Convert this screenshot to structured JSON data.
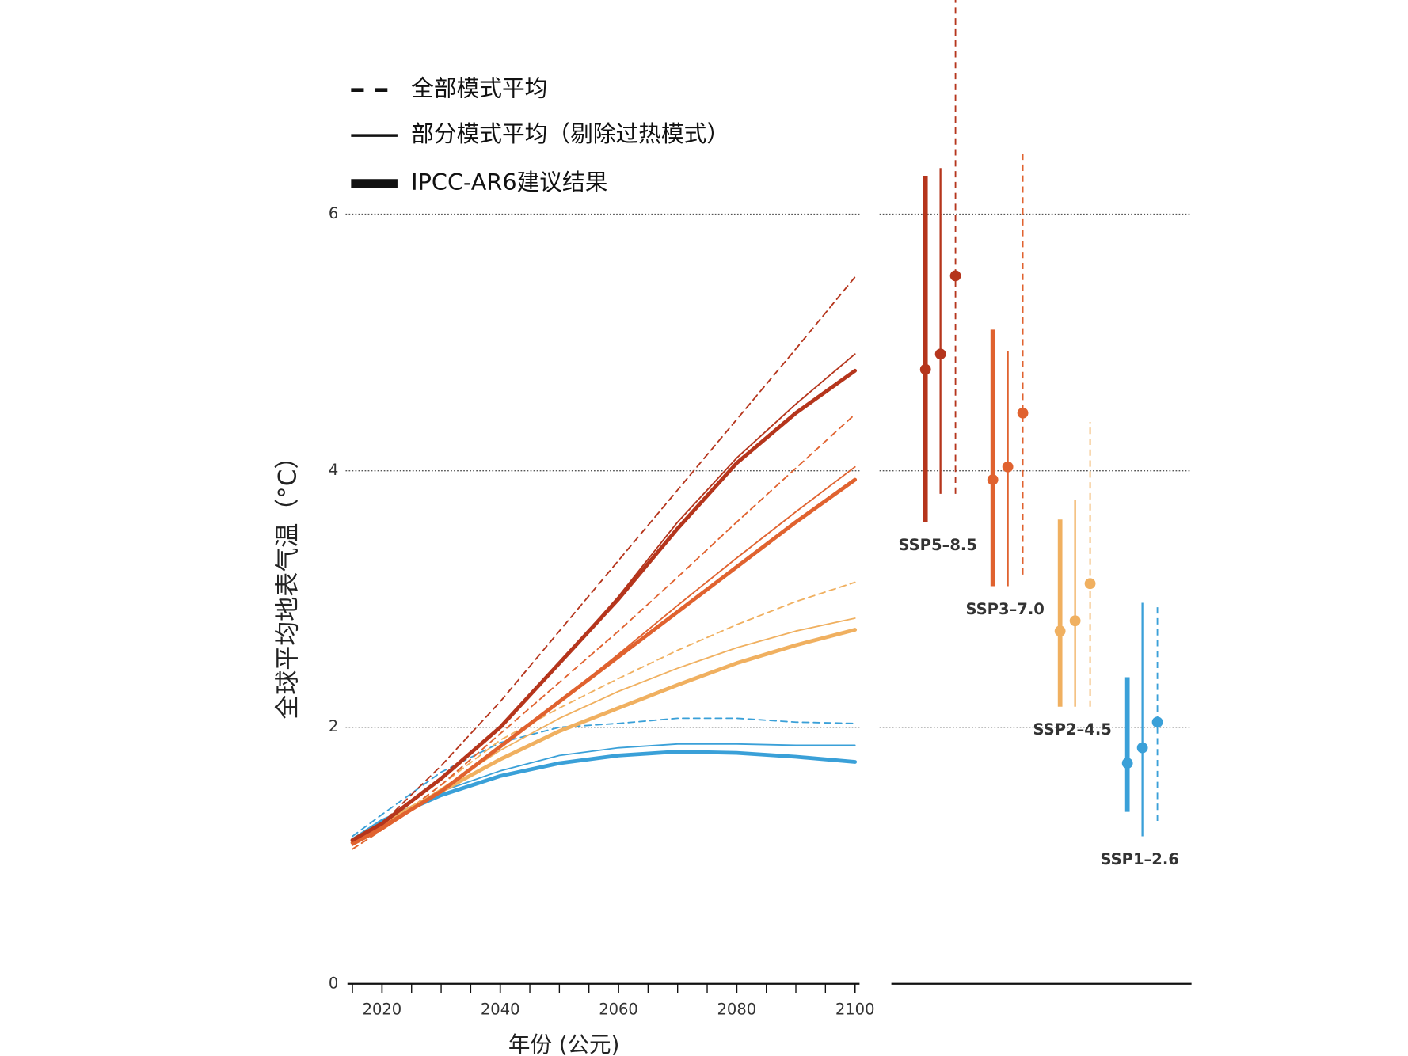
{
  "chart_data": [
    {
      "type": "line",
      "ylabel": "全球平均地表气温（°C）",
      "xlabel": "年份 (公元)",
      "xlim": [
        2014.5,
        2101
      ],
      "ylim": [
        0,
        7.67
      ],
      "xticks": [
        2020,
        2040,
        2060,
        2080,
        2100
      ],
      "xticks_minor": [
        2015,
        2025,
        2030,
        2035,
        2045,
        2050,
        2055,
        2065,
        2070,
        2075,
        2085,
        2090,
        2095
      ],
      "yticks": [
        0,
        2,
        4,
        6
      ],
      "grid": true,
      "legend": [
        {
          "label": "全部模式平均",
          "style": "dashed"
        },
        {
          "label": "部分模式平均（剔除过热模式）",
          "style": "thin"
        },
        {
          "label": "IPCC-AR6建议结果",
          "style": "thick"
        }
      ],
      "x": [
        2015,
        2020,
        2030,
        2040,
        2050,
        2060,
        2070,
        2080,
        2090,
        2100
      ],
      "series": [
        {
          "style": "dashed",
          "color": "#3aa0d8",
          "values": [
            1.15,
            1.32,
            1.65,
            1.88,
            2.0,
            2.03,
            2.07,
            2.07,
            2.04,
            2.03
          ]
        },
        {
          "style": "dashed",
          "color": "#f0b060",
          "values": [
            1.05,
            1.2,
            1.55,
            1.9,
            2.15,
            2.38,
            2.6,
            2.8,
            2.98,
            3.13
          ]
        },
        {
          "style": "dashed",
          "color": "#e0622f",
          "values": [
            1.05,
            1.2,
            1.55,
            1.95,
            2.35,
            2.75,
            3.17,
            3.6,
            4.02,
            4.44
          ]
        },
        {
          "style": "dashed",
          "color": "#b5351c",
          "values": [
            1.08,
            1.25,
            1.7,
            2.2,
            2.75,
            3.3,
            3.85,
            4.4,
            4.95,
            5.51
          ]
        },
        {
          "style": "thin",
          "color": "#3aa0d8",
          "values": [
            1.12,
            1.27,
            1.5,
            1.66,
            1.78,
            1.84,
            1.87,
            1.87,
            1.86,
            1.86
          ]
        },
        {
          "style": "thin",
          "color": "#f0b060",
          "values": [
            1.1,
            1.22,
            1.52,
            1.82,
            2.07,
            2.28,
            2.46,
            2.62,
            2.75,
            2.85
          ]
        },
        {
          "style": "thin",
          "color": "#e0622f",
          "values": [
            1.08,
            1.2,
            1.5,
            1.85,
            2.2,
            2.57,
            2.95,
            3.32,
            3.68,
            4.03
          ]
        },
        {
          "style": "thin",
          "color": "#b5351c",
          "values": [
            1.12,
            1.25,
            1.6,
            2.0,
            2.5,
            3.02,
            3.6,
            4.1,
            4.52,
            4.91
          ]
        },
        {
          "style": "thick",
          "color": "#3aa0d8",
          "values": [
            1.12,
            1.27,
            1.47,
            1.62,
            1.72,
            1.78,
            1.81,
            1.8,
            1.77,
            1.73
          ]
        },
        {
          "style": "thick",
          "color": "#f0b060",
          "values": [
            1.12,
            1.25,
            1.5,
            1.75,
            1.97,
            2.15,
            2.33,
            2.5,
            2.64,
            2.76
          ]
        },
        {
          "style": "thick",
          "color": "#e0622f",
          "values": [
            1.1,
            1.22,
            1.5,
            1.85,
            2.2,
            2.55,
            2.9,
            3.25,
            3.6,
            3.93
          ]
        },
        {
          "style": "thick",
          "color": "#b5351c",
          "values": [
            1.12,
            1.25,
            1.6,
            2.0,
            2.5,
            3.0,
            3.55,
            4.06,
            4.45,
            4.78
          ]
        }
      ]
    },
    {
      "type": "range",
      "ylim": [
        0,
        7.67
      ],
      "yticks": [
        0,
        2,
        4,
        6
      ],
      "grid": true,
      "styles": [
        "thick",
        "thin",
        "dashed"
      ],
      "groups": [
        {
          "name": "SSP5–8.5",
          "color": "#b5351c",
          "values": [
            4.79,
            4.91,
            5.52
          ],
          "low": [
            3.6,
            3.82,
            3.82
          ],
          "high": [
            6.3,
            6.36,
            7.67
          ]
        },
        {
          "name": "SSP3–7.0",
          "color": "#e0622f",
          "values": [
            3.93,
            4.03,
            4.45
          ],
          "low": [
            3.1,
            3.1,
            3.19
          ],
          "high": [
            5.1,
            4.93,
            6.5
          ]
        },
        {
          "name": "SSP2–4.5",
          "color": "#f0b060",
          "values": [
            2.75,
            2.83,
            3.12
          ],
          "low": [
            2.16,
            2.16,
            2.16
          ],
          "high": [
            3.62,
            3.77,
            4.38
          ]
        },
        {
          "name": "SSP1–2.6",
          "color": "#3aa0d8",
          "values": [
            1.72,
            1.84,
            2.04
          ],
          "low": [
            1.34,
            1.15,
            1.27
          ],
          "high": [
            2.39,
            2.97,
            2.94
          ]
        }
      ]
    }
  ]
}
